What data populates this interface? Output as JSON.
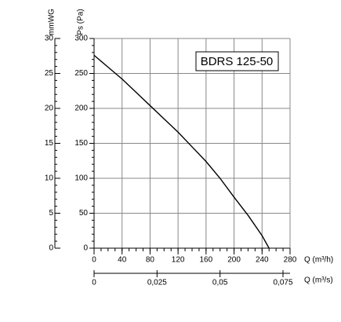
{
  "chart_data": {
    "type": "line",
    "label": "BDRS 125-50",
    "ylabel": "Ps (Pa)",
    "y2label": "mmWG",
    "xlabel": "Q (m³/h)",
    "x2label": "Q (m³/s)",
    "x": [
      0,
      20,
      40,
      60,
      80,
      100,
      120,
      140,
      160,
      180,
      200,
      220,
      240,
      250
    ],
    "series": [
      {
        "name": "BDRS 125-50",
        "color": "#000000",
        "values": [
          276,
          259,
          242,
          223,
          204,
          185,
          166,
          145,
          124,
          100,
          73,
          47,
          18,
          0
        ]
      }
    ],
    "xlim": [
      0,
      280
    ],
    "xticks": [
      0,
      40,
      80,
      120,
      160,
      200,
      240,
      280
    ],
    "ylim": [
      0,
      300
    ],
    "yticks": [
      0,
      50,
      100,
      150,
      200,
      250,
      300
    ],
    "y2lim": [
      0,
      30
    ],
    "y2ticks": [
      0,
      5,
      10,
      15,
      20,
      25,
      30
    ],
    "x2lim": [
      0,
      0.0778
    ],
    "x2ticks": [
      0,
      {
        "value": 0.025,
        "label": "0,025"
      },
      {
        "value": 0.05,
        "label": "0,05"
      },
      {
        "value": 0.075,
        "label": "0,075"
      }
    ],
    "grid": true
  }
}
